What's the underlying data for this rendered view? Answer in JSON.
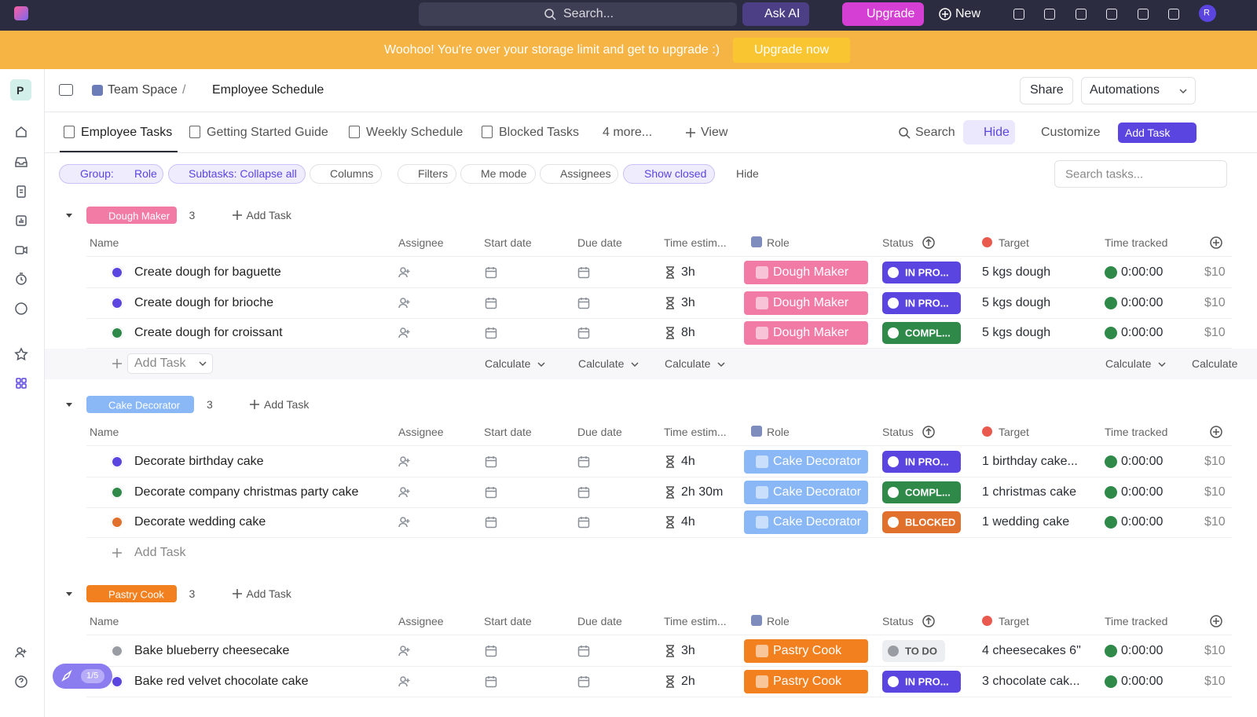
{
  "topbar": {
    "search": "Search...",
    "ask_ai": "Ask AI",
    "upgrade": "Upgrade",
    "new": "New",
    "avatar": "R"
  },
  "banner": {
    "message": "Woohoo! You're over your storage limit and get to upgrade :)",
    "button": "Upgrade now"
  },
  "header": {
    "workspace": "P",
    "breadcrumb": [
      "Team Space",
      "Employee Schedule"
    ],
    "share": "Share",
    "automations": "Automations"
  },
  "tabs": {
    "items": [
      "Employee Tasks",
      "Getting Started Guide",
      "Weekly Schedule",
      "Blocked Tasks",
      "4 more...",
      "View"
    ],
    "active": 0,
    "search": "Search",
    "hide": "Hide",
    "customize": "Customize",
    "add_task": "Add Task"
  },
  "filters": {
    "group_label": "Group:",
    "group_value": "Role",
    "chips": [
      "Subtasks: Collapse all",
      "Columns",
      "Filters",
      "Me mode",
      "Assignees",
      "Show closed"
    ],
    "hide": "Hide",
    "search_placeholder": "Search tasks..."
  },
  "columns": [
    "Name",
    "Assignee",
    "Start date",
    "Due date",
    "Time estim...",
    "Role",
    "Status",
    "Target",
    "Time tracked"
  ],
  "statuses": {
    "IN PRO...": "#5b45e0",
    "COMPL...": "#2f8a4a",
    "BLOCKED": "#e0702c",
    "TO DO": "#eceef1"
  },
  "groups": [
    {
      "name": "Dough Maker",
      "color": "#f27ba6",
      "count": 3,
      "add_task": "Add Task",
      "tasks": [
        {
          "name": "Create dough for baguette",
          "estimate": "3h",
          "role": "Dough Maker",
          "status": "IN PRO...",
          "target": "5 kgs dough",
          "time_tracked": "0:00:00",
          "cost": "$10"
        },
        {
          "name": "Create dough for brioche",
          "estimate": "3h",
          "role": "Dough Maker",
          "status": "IN PRO...",
          "target": "5 kgs dough",
          "time_tracked": "0:00:00",
          "cost": "$10"
        },
        {
          "name": "Create dough for croissant",
          "estimate": "8h",
          "role": "Dough Maker",
          "status": "COMPL...",
          "target": "5 kgs dough",
          "time_tracked": "0:00:00",
          "cost": "$10"
        }
      ],
      "footer": {
        "add_task": "Add Task",
        "calculate": [
          "Calculate",
          "Calculate",
          "Calculate",
          "Calculate",
          "Calculate"
        ]
      }
    },
    {
      "name": "Cake Decorator",
      "color": "#8ab8f6",
      "count": 3,
      "add_task": "Add Task",
      "tasks": [
        {
          "name": "Decorate birthday cake",
          "estimate": "4h",
          "role": "Cake Decorator",
          "status": "IN PRO...",
          "target": "1 birthday cake...",
          "time_tracked": "0:00:00",
          "cost": "$10"
        },
        {
          "name": "Decorate company christmas party cake",
          "estimate": "2h 30m",
          "role": "Cake Decorator",
          "status": "COMPL...",
          "target": "1 christmas cake",
          "time_tracked": "0:00:00",
          "cost": "$10"
        },
        {
          "name": "Decorate wedding cake",
          "estimate": "4h",
          "role": "Cake Decorator",
          "status": "BLOCKED",
          "target": "1 wedding cake",
          "time_tracked": "0:00:00",
          "cost": "$10"
        }
      ],
      "footer": {
        "add_task": "Add Task"
      }
    },
    {
      "name": "Pastry Cook",
      "color": "#f2801f",
      "count": 3,
      "add_task": "Add Task",
      "tasks": [
        {
          "name": "Bake blueberry cheesecake",
          "estimate": "3h",
          "role": "Pastry Cook",
          "status": "TO DO",
          "target": "4 cheesecakes 6\"",
          "time_tracked": "0:00:00",
          "cost": "$10"
        },
        {
          "name": "Bake red velvet chocolate cake",
          "estimate": "2h",
          "role": "Pastry Cook",
          "status": "IN PRO...",
          "target": "3 chocolate cak...",
          "time_tracked": "0:00:00",
          "cost": "$10"
        }
      ]
    }
  ],
  "onboarding": {
    "progress": "1/5"
  }
}
